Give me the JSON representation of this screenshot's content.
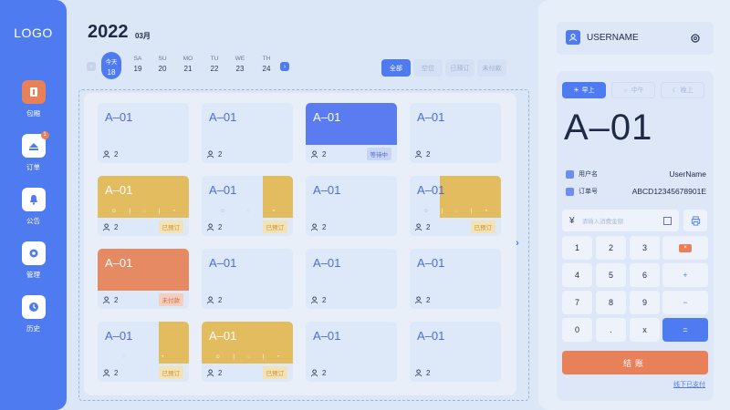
{
  "sidebar": {
    "logo": "LOGO",
    "items": [
      {
        "label": "包厢",
        "icon": "room-icon"
      },
      {
        "label": "订单",
        "icon": "order-icon",
        "badge": "1"
      },
      {
        "label": "公告",
        "icon": "bell-icon"
      },
      {
        "label": "管理",
        "icon": "gear-icon"
      },
      {
        "label": "历史",
        "icon": "clock-icon"
      }
    ]
  },
  "header": {
    "year": "2022",
    "month": "03月",
    "days": [
      {
        "weekday": "今天",
        "date": "18"
      },
      {
        "weekday": "SA",
        "date": "19"
      },
      {
        "weekday": "SU",
        "date": "20"
      },
      {
        "weekday": "MO",
        "date": "21"
      },
      {
        "weekday": "TU",
        "date": "22"
      },
      {
        "weekday": "WE",
        "date": "23"
      },
      {
        "weekday": "TH",
        "date": "24"
      }
    ],
    "filters": [
      "全部",
      "空位",
      "已预订",
      "未付款"
    ]
  },
  "tables": {
    "name": "A–01",
    "people": "2",
    "status_wait": "等待中",
    "status_booked": "已预订",
    "status_unpaid": "未付款"
  },
  "panel": {
    "username": "USERNAME",
    "meals": [
      "早上",
      "中午",
      "晚上"
    ],
    "table": "A–01",
    "user_label": "用户名",
    "user_value": "UserName",
    "order_label": "订单号",
    "order_value": "ABCD12345678901E",
    "amount_placeholder": "请输入消费金额",
    "yen": "¥",
    "keys": {
      "k1": "1",
      "k2": "2",
      "k3": "3",
      "k4": "4",
      "k5": "5",
      "k6": "6",
      "k7": "7",
      "k8": "8",
      "k9": "9",
      "k0": "0",
      "dot": ".",
      "x": "x",
      "plus": "+",
      "minus": "−",
      "eq": "=",
      "del": "×"
    },
    "pay": "结账",
    "offline": "线下已支付"
  },
  "colors": {
    "primary": "#4f7bf0",
    "accent": "#e8805a",
    "yellow": "#e2bc5f"
  }
}
